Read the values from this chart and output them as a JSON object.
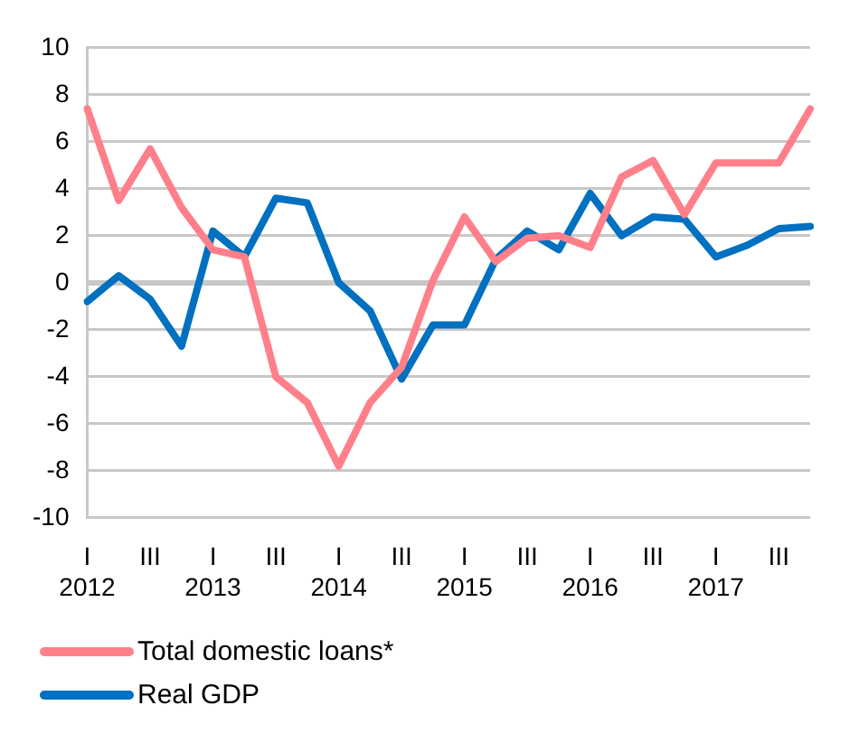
{
  "chart_data": {
    "type": "line",
    "categories": [
      "I\n2012",
      null,
      "III",
      null,
      "I\n2013",
      null,
      "III",
      null,
      "I\n2014",
      null,
      "III",
      null,
      "I\n2015",
      null,
      "III",
      null,
      "I\n2016",
      null,
      "III",
      null,
      "I\n2017",
      null,
      "III",
      null
    ],
    "series": [
      {
        "name": "Total domestic loans*",
        "color": "#ff7f8a",
        "values": [
          7.4,
          3.5,
          5.7,
          3.2,
          1.4,
          1.1,
          -4.0,
          -5.1,
          -7.8,
          -5.1,
          -3.6,
          0.1,
          2.8,
          0.9,
          1.9,
          2.0,
          1.5,
          4.5,
          5.2,
          2.9,
          5.1,
          5.1,
          5.1,
          7.4
        ]
      },
      {
        "name": "Real GDP",
        "color": "#0070c0",
        "values": [
          -0.8,
          0.3,
          -0.7,
          -2.7,
          2.2,
          1.1,
          3.6,
          3.4,
          0.0,
          -1.2,
          -4.1,
          -1.8,
          -1.8,
          1.0,
          2.2,
          1.4,
          3.8,
          2.0,
          2.8,
          2.7,
          1.1,
          1.6,
          2.3,
          2.4
        ]
      }
    ],
    "ylim": [
      -10,
      10
    ],
    "yticks": [
      -10,
      -8,
      -6,
      -4,
      -2,
      0,
      2,
      4,
      6,
      8,
      10
    ],
    "grid": "y",
    "legend": "bottom left",
    "marker": "none",
    "line_style": "solid"
  }
}
